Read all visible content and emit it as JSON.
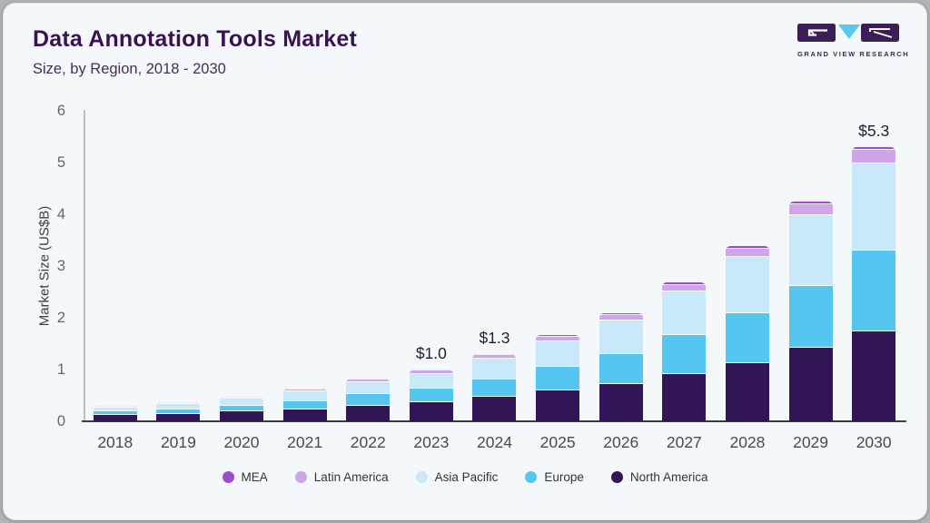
{
  "header": {
    "title": "Data Annotation Tools Market",
    "subtitle": "Size, by Region, 2018 - 2030"
  },
  "logo": {
    "brand_text": "GRAND VIEW RESEARCH",
    "block_color": "#3b1d58",
    "triangle_color": "#5bc8f1"
  },
  "chart_data": {
    "type": "bar",
    "stacked": true,
    "title": "Data Annotation Tools Market",
    "subtitle": "Size, by Region, 2018 - 2030",
    "ylabel": "Market Size (US$B)",
    "xlabel": "",
    "ylim": [
      0,
      6
    ],
    "yticks": [
      0,
      1,
      2,
      3,
      4,
      5,
      6
    ],
    "grid": false,
    "legend_position": "bottom",
    "categories": [
      "2018",
      "2019",
      "2020",
      "2021",
      "2022",
      "2023",
      "2024",
      "2025",
      "2026",
      "2027",
      "2028",
      "2029",
      "2030"
    ],
    "series": [
      {
        "name": "North America",
        "color": "#321556",
        "values": [
          0.12,
          0.15,
          0.19,
          0.24,
          0.3,
          0.36,
          0.47,
          0.6,
          0.72,
          0.91,
          1.13,
          1.42,
          1.73
        ]
      },
      {
        "name": "Europe",
        "color": "#55c6ef",
        "values": [
          0.07,
          0.09,
          0.11,
          0.15,
          0.22,
          0.28,
          0.34,
          0.45,
          0.58,
          0.76,
          0.96,
          1.2,
          1.56
        ]
      },
      {
        "name": "Asia Pacific",
        "color": "#c7e9f9",
        "values": [
          0.08,
          0.1,
          0.14,
          0.19,
          0.23,
          0.28,
          0.4,
          0.5,
          0.64,
          0.84,
          1.08,
          1.37,
          1.7
        ]
      },
      {
        "name": "Latin America",
        "color": "#cfa6ec",
        "values": [
          0.02,
          0.02,
          0.03,
          0.04,
          0.05,
          0.06,
          0.07,
          0.08,
          0.11,
          0.13,
          0.17,
          0.2,
          0.25
        ]
      },
      {
        "name": "MEA",
        "color": "#9f4bcf",
        "values": [
          0.01,
          0.01,
          0.01,
          0.01,
          0.02,
          0.02,
          0.02,
          0.03,
          0.04,
          0.04,
          0.05,
          0.06,
          0.06
        ]
      }
    ],
    "totals": [
      0.3,
      0.37,
      0.48,
      0.63,
      0.82,
      1.0,
      1.3,
      1.66,
      2.09,
      2.68,
      3.39,
      4.25,
      5.3
    ],
    "value_labels": {
      "2023": "$1.0",
      "2024": "$1.3",
      "2030": "$5.3"
    },
    "legend_order": [
      "MEA",
      "Latin America",
      "Asia Pacific",
      "Europe",
      "North America"
    ]
  }
}
